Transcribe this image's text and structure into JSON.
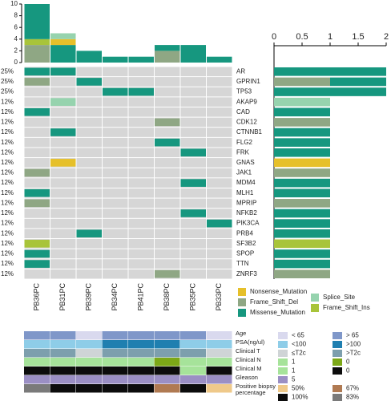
{
  "chart_data": {
    "type": "oncoprint",
    "samples": [
      "PB36PC",
      "PB31PC",
      "PB39PC",
      "PB34PC",
      "PB41PC",
      "PB38PC",
      "PB35PC",
      "PB33PC"
    ],
    "genes": [
      "AR",
      "GPRIN1",
      "TP53",
      "AKAP9",
      "CAD",
      "CDK12",
      "CTNNB1",
      "FLG2",
      "FRK",
      "GNAS",
      "JAK1",
      "MDM4",
      "MLH1",
      "MPRIP",
      "NFKB2",
      "PIK3CA",
      "PRB4",
      "SF3B2",
      "SPOP",
      "TTN",
      "ZNRF3"
    ],
    "frequency": [
      25,
      25,
      25,
      12,
      12,
      12,
      12,
      12,
      12,
      12,
      12,
      12,
      12,
      12,
      12,
      12,
      12,
      12,
      12,
      12,
      12
    ],
    "frequency_labels": [
      "25%",
      "25%",
      "25%",
      "12%",
      "12%",
      "12%",
      "12%",
      "12%",
      "12%",
      "12%",
      "12%",
      "12%",
      "12%",
      "12%",
      "12%",
      "12%",
      "12%",
      "12%",
      "12%",
      "12%",
      "12%"
    ],
    "mutation_types": [
      {
        "name": "Nonsense_Mutation",
        "color": "#e6c02a"
      },
      {
        "name": "Frame_Shift_Del",
        "color": "#8fa784"
      },
      {
        "name": "Missense_Mutation",
        "color": "#16977f"
      },
      {
        "name": "Splice_Site",
        "color": "#96d3ae"
      },
      {
        "name": "Frame_Shift_Ins",
        "color": "#a8c43a"
      }
    ],
    "matrix": [
      [
        "Missense_Mutation",
        "Missense_Mutation",
        null,
        null,
        null,
        null,
        null,
        null
      ],
      [
        "Frame_Shift_Del",
        null,
        "Missense_Mutation",
        null,
        null,
        null,
        null,
        null
      ],
      [
        null,
        null,
        null,
        "Missense_Mutation",
        "Missense_Mutation",
        null,
        null,
        null
      ],
      [
        null,
        "Splice_Site",
        null,
        null,
        null,
        null,
        null,
        null
      ],
      [
        "Missense_Mutation",
        null,
        null,
        null,
        null,
        null,
        null,
        null
      ],
      [
        null,
        null,
        null,
        null,
        null,
        "Frame_Shift_Del",
        null,
        null
      ],
      [
        null,
        "Missense_Mutation",
        null,
        null,
        null,
        null,
        null,
        null
      ],
      [
        null,
        null,
        null,
        null,
        null,
        "Missense_Mutation",
        null,
        null
      ],
      [
        null,
        null,
        null,
        null,
        null,
        null,
        "Missense_Mutation",
        null
      ],
      [
        null,
        "Nonsense_Mutation",
        null,
        null,
        null,
        null,
        null,
        null
      ],
      [
        "Frame_Shift_Del",
        null,
        null,
        null,
        null,
        null,
        null,
        null
      ],
      [
        null,
        null,
        null,
        null,
        null,
        null,
        "Missense_Mutation",
        null
      ],
      [
        "Missense_Mutation",
        null,
        null,
        null,
        null,
        null,
        null,
        null
      ],
      [
        "Frame_Shift_Del",
        null,
        null,
        null,
        null,
        null,
        null,
        null
      ],
      [
        null,
        null,
        null,
        null,
        null,
        null,
        "Missense_Mutation",
        null
      ],
      [
        null,
        null,
        null,
        null,
        null,
        null,
        null,
        "Missense_Mutation"
      ],
      [
        null,
        null,
        "Missense_Mutation",
        null,
        null,
        null,
        null,
        null
      ],
      [
        "Frame_Shift_Ins",
        null,
        null,
        null,
        null,
        null,
        null,
        null
      ],
      [
        "Missense_Mutation",
        null,
        null,
        null,
        null,
        null,
        null,
        null
      ],
      [
        "Missense_Mutation",
        null,
        null,
        null,
        null,
        null,
        null,
        null
      ],
      [
        null,
        null,
        null,
        null,
        null,
        "Frame_Shift_Del",
        null,
        null
      ]
    ],
    "top_bar": {
      "ylim": [
        0,
        10
      ],
      "yticks": [
        0,
        2,
        4,
        6,
        8,
        10
      ],
      "series": [
        {
          "type": "Frame_Shift_Del",
          "values": [
            3,
            0,
            0,
            0,
            0,
            2,
            0,
            0
          ]
        },
        {
          "type": "Frame_Shift_Ins",
          "values": [
            1,
            0,
            0,
            0,
            0,
            0,
            0,
            0
          ]
        },
        {
          "type": "Missense_Mutation",
          "values": [
            6,
            3,
            2,
            1,
            1,
            1,
            3,
            1
          ]
        },
        {
          "type": "Nonsense_Mutation",
          "values": [
            0,
            1,
            0,
            0,
            0,
            0,
            0,
            0
          ]
        },
        {
          "type": "Splice_Site",
          "values": [
            0,
            1,
            0,
            0,
            0,
            0,
            0,
            0
          ]
        }
      ]
    },
    "side_bar": {
      "xlim": [
        0,
        2
      ],
      "xticks": [
        0,
        0.5,
        1,
        1.5,
        2
      ],
      "series": [
        {
          "type": "Frame_Shift_Del",
          "values": [
            0,
            1,
            0,
            0,
            0,
            1,
            0,
            0,
            0,
            0,
            1,
            0,
            0,
            1,
            0,
            0,
            0,
            0,
            0,
            0,
            1
          ]
        },
        {
          "type": "Frame_Shift_Ins",
          "values": [
            0,
            0,
            0,
            0,
            0,
            0,
            0,
            0,
            0,
            0,
            0,
            0,
            0,
            0,
            0,
            0,
            0,
            1,
            0,
            0,
            0
          ]
        },
        {
          "type": "Missense_Mutation",
          "values": [
            2,
            1,
            2,
            0,
            1,
            0,
            1,
            1,
            1,
            0,
            0,
            1,
            1,
            0,
            1,
            1,
            1,
            0,
            1,
            1,
            0
          ]
        },
        {
          "type": "Nonsense_Mutation",
          "values": [
            0,
            0,
            0,
            0,
            0,
            0,
            0,
            0,
            0,
            1,
            0,
            0,
            0,
            0,
            0,
            0,
            0,
            0,
            0,
            0,
            0
          ]
        },
        {
          "type": "Splice_Site",
          "values": [
            0,
            0,
            0,
            1,
            0,
            0,
            0,
            0,
            0,
            0,
            0,
            0,
            0,
            0,
            0,
            0,
            0,
            0,
            0,
            0,
            0
          ]
        }
      ]
    },
    "clinical": [
      {
        "name": "Age",
        "levels": [
          {
            "label": "< 65",
            "color": "#d9d9ee"
          },
          {
            "label": "> 65",
            "color": "#7f97c9"
          }
        ],
        "values": [
          "> 65",
          "> 65",
          "< 65",
          "> 65",
          "> 65",
          "> 65",
          "> 65",
          "< 65"
        ]
      },
      {
        "name": "PSA(ng/ul)",
        "levels": [
          {
            "label": "<100",
            "color": "#8ecde8"
          },
          {
            "label": ">100",
            "color": "#1f7fb0"
          }
        ],
        "values": [
          "<100",
          "<100",
          "<100",
          ">100",
          ">100",
          ">100",
          "<100",
          "<100"
        ]
      },
      {
        "name": "Clinical T",
        "levels": [
          {
            "label": "≤T2c",
            "color": "#cfd4d6"
          },
          {
            "label": ">T2c",
            "color": "#7d9fad"
          }
        ],
        "values": [
          ">T2c",
          ">T2c",
          "≤T2c",
          ">T2c",
          ">T2c",
          ">T2c",
          ">T2c",
          "≤T2c"
        ]
      },
      {
        "name": "Clinical N",
        "levels": [
          {
            "label": "1",
            "color": "#a6e39a"
          },
          {
            "label": "0",
            "color": "#7ca817"
          }
        ],
        "values": [
          "1",
          "1",
          "1",
          "1",
          "1",
          "0",
          "1",
          "1"
        ]
      },
      {
        "name": "Clinical M",
        "levels": [
          {
            "label": "1",
            "color": "#a6e39a"
          },
          {
            "label": "0",
            "color": "#0c0c0c"
          }
        ],
        "values": [
          "0",
          "0",
          "0",
          "0",
          "0",
          "0",
          "1",
          "0"
        ]
      },
      {
        "name": "Gleason",
        "levels": [
          {
            "label": "5",
            "color": "#9b8fc4"
          }
        ],
        "values": [
          "5",
          "5",
          "5",
          "5",
          "5",
          "5",
          "5",
          "5"
        ]
      },
      {
        "name": "Positive biopsy percentage",
        "levels": [
          {
            "label": "50%",
            "color": "#efc98a"
          },
          {
            "label": "67%",
            "color": "#b07a52"
          },
          {
            "label": "100%",
            "color": "#0c0c0c"
          },
          {
            "label": "83%",
            "color": "#7a7a7a"
          }
        ],
        "values": [
          "83%",
          "100%",
          "100%",
          "100%",
          "100%",
          "67%",
          "100%",
          "50%"
        ]
      }
    ]
  }
}
